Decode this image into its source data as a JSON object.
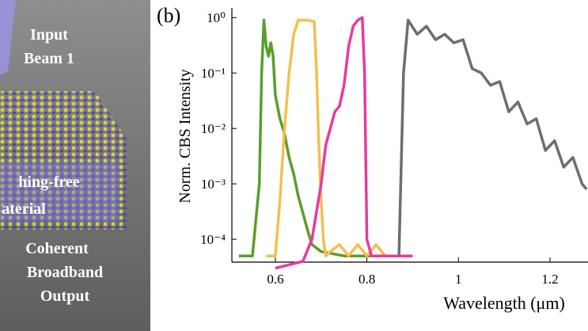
{
  "panel_a": {
    "labels": [
      "Input",
      "Beam 1",
      "hing-free",
      "aterial",
      "Coherent",
      "Broadband",
      "Output"
    ]
  },
  "chart_data": {
    "type": "line",
    "panel_label": "(b)",
    "ylabel": "Norm. CBS Intensity",
    "xlabel": "Wavelength (μm)",
    "yscale": "log",
    "xlim": [
      0.505,
      1.283
    ],
    "ylim": [
      4e-05,
      1.4
    ],
    "xticks": [
      0.6,
      0.8,
      1,
      1.2
    ],
    "yticks": [
      {
        "value": 1,
        "label": "10⁰"
      },
      {
        "value": 0.1,
        "label": "10⁻¹"
      },
      {
        "value": 0.01,
        "label": "10⁻²"
      },
      {
        "value": 0.001,
        "label": "10⁻³"
      },
      {
        "value": 0.0001,
        "label": "10⁻⁴"
      }
    ],
    "series": [
      {
        "color": "#5a9e2a",
        "x": [
          0.52,
          0.55,
          0.565,
          0.57,
          0.575,
          0.58,
          0.585,
          0.59,
          0.595,
          0.6,
          0.61,
          0.62,
          0.63,
          0.64,
          0.65,
          0.66,
          0.67,
          0.68,
          0.7,
          0.75,
          0.8,
          0.85,
          0.9
        ],
        "values": [
          5e-05,
          5e-05,
          0.001,
          0.1,
          0.9,
          0.3,
          0.2,
          0.35,
          0.2,
          0.04,
          0.015,
          0.008,
          0.003,
          0.0015,
          0.0006,
          0.0003,
          0.00015,
          8e-05,
          6e-05,
          5e-05,
          5e-05,
          5e-05,
          5e-05
        ]
      },
      {
        "color": "#f2c04e",
        "x": [
          0.58,
          0.6,
          0.61,
          0.62,
          0.63,
          0.64,
          0.65,
          0.67,
          0.685,
          0.69,
          0.695,
          0.7,
          0.705,
          0.71,
          0.72,
          0.74,
          0.76,
          0.78,
          0.8,
          0.82,
          0.84
        ],
        "values": [
          5e-05,
          5e-05,
          0.0005,
          0.01,
          0.1,
          0.5,
          0.9,
          0.9,
          0.85,
          0.1,
          0.005,
          0.0005,
          0.0001,
          5e-05,
          6e-05,
          8e-05,
          5e-05,
          8e-05,
          5e-05,
          8e-05,
          5e-05
        ]
      },
      {
        "color": "#e83aa0",
        "x": [
          0.6,
          0.66,
          0.68,
          0.7,
          0.71,
          0.72,
          0.73,
          0.74,
          0.75,
          0.76,
          0.77,
          0.78,
          0.79,
          0.795,
          0.8,
          0.81,
          0.85,
          0.9
        ],
        "values": [
          3e-05,
          4e-05,
          0.0001,
          0.001,
          0.005,
          0.01,
          0.02,
          0.025,
          0.06,
          0.3,
          0.7,
          0.9,
          1,
          0.1,
          0.0001,
          5e-05,
          5e-05,
          5e-05
        ]
      },
      {
        "color": "#6e6e6e",
        "x": [
          0.87,
          0.88,
          0.89,
          0.91,
          0.93,
          0.95,
          0.97,
          0.99,
          1.01,
          1.03,
          1.05,
          1.07,
          1.09,
          1.11,
          1.13,
          1.15,
          1.17,
          1.19,
          1.21,
          1.23,
          1.25,
          1.27,
          1.28
        ],
        "values": [
          5e-05,
          0.1,
          0.9,
          0.5,
          0.7,
          0.4,
          0.5,
          0.35,
          0.4,
          0.12,
          0.1,
          0.06,
          0.07,
          0.02,
          0.03,
          0.012,
          0.015,
          0.004,
          0.006,
          0.002,
          0.003,
          0.001,
          0.0008
        ]
      }
    ]
  }
}
